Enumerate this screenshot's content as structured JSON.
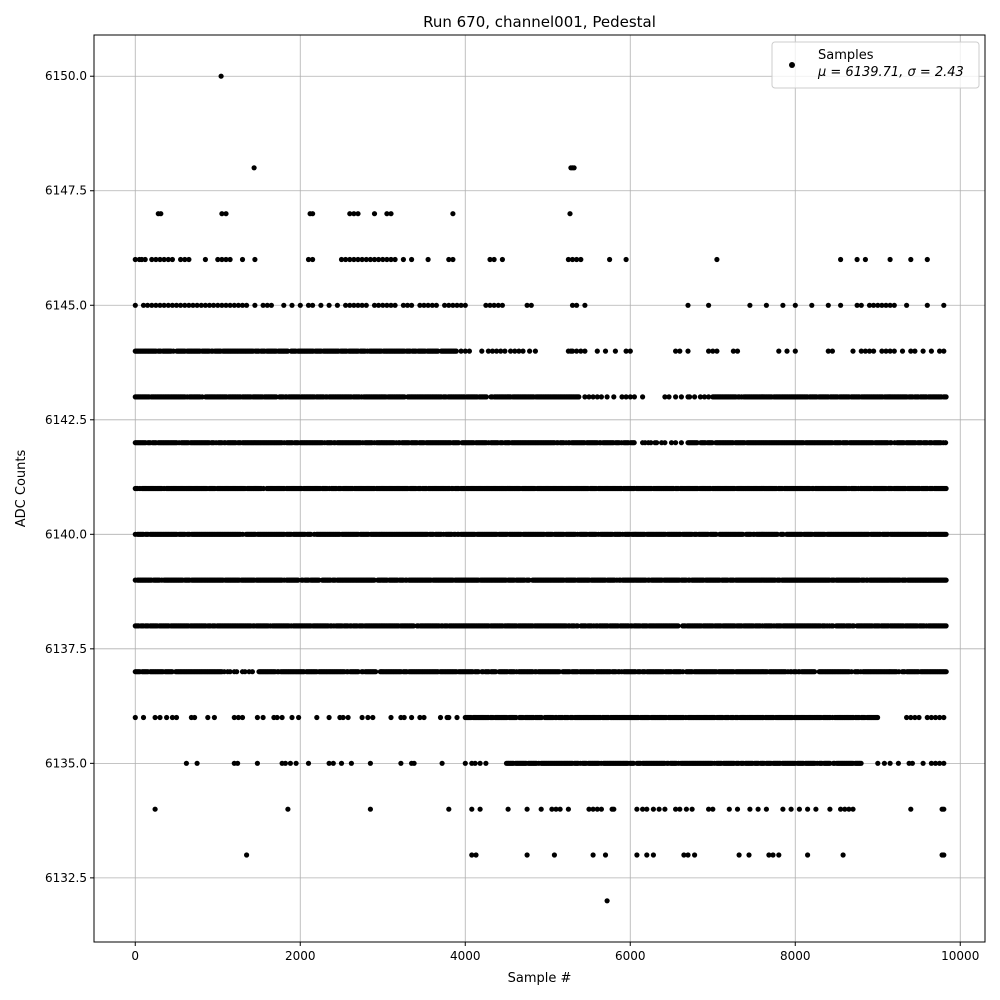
{
  "chart_data": {
    "type": "scatter",
    "title": "Run 670, channel001, Pedestal",
    "xlabel": "Sample #",
    "ylabel": "ADC Counts",
    "xlim": [
      -500,
      10300
    ],
    "ylim": [
      6131.1,
      6150.9
    ],
    "xticks": [
      0,
      2000,
      4000,
      6000,
      8000,
      10000
    ],
    "xtick_labels": [
      "0",
      "2000",
      "4000",
      "6000",
      "8000",
      "10000"
    ],
    "yticks": [
      6132.5,
      6135.0,
      6137.5,
      6140.0,
      6142.5,
      6145.0,
      6147.5,
      6150.0
    ],
    "ytick_labels": [
      "6132.5",
      "6135.0",
      "6137.5",
      "6140.0",
      "6142.5",
      "6145.0",
      "6147.5",
      "6150.0"
    ],
    "grid": true,
    "legend": {
      "position": "upper-right",
      "label": "Samples",
      "stats": "μ = 6139.71, σ = 2.43"
    },
    "marker_color": "#000000",
    "series": [
      {
        "name": "Samples",
        "sample_range": [
          0,
          9830
        ],
        "dense_levels": [
          {
            "y": 6137,
            "x_ranges": [
              [
                0,
                1050
              ],
              [
                1500,
                9830
              ]
            ]
          },
          {
            "y": 6138,
            "x_ranges": [
              [
                0,
                9830
              ]
            ]
          },
          {
            "y": 6139,
            "x_ranges": [
              [
                0,
                9830
              ]
            ]
          },
          {
            "y": 6140,
            "x_ranges": [
              [
                0,
                9830
              ]
            ]
          },
          {
            "y": 6141,
            "x_ranges": [
              [
                0,
                9830
              ]
            ]
          },
          {
            "y": 6142,
            "x_ranges": [
              [
                0,
                6050
              ],
              [
                6700,
                9830
              ]
            ]
          },
          {
            "y": 6143,
            "x_ranges": [
              [
                0,
                5400
              ],
              [
                7000,
                9830
              ]
            ]
          },
          {
            "y": 6144,
            "x_ranges": [
              [
                0,
                3900
              ]
            ]
          },
          {
            "y": 6136,
            "x_ranges": [
              [
                4000,
                9000
              ]
            ]
          },
          {
            "y": 6135,
            "x_ranges": [
              [
                4500,
                8800
              ]
            ]
          }
        ],
        "sparse_levels": [
          {
            "y": 6133,
            "x": [
              1350,
              4080,
              4130,
              4750,
              5080,
              5550,
              5700,
              6080,
              6200,
              6280,
              6650,
              6700,
              6780,
              7320,
              7440,
              7680,
              7730,
              7800,
              8150,
              8580,
              9780,
              9800
            ]
          },
          {
            "y": 6134,
            "x": [
              240,
              1850,
              2850,
              3800,
              4080,
              4180,
              4520,
              4750,
              4920,
              5050,
              5100,
              5150,
              5250,
              5500,
              5550,
              5600,
              5650,
              5780,
              5800,
              6080,
              6150,
              6200,
              6280,
              6350,
              6420,
              6550,
              6600,
              6680,
              6750,
              6950,
              7000,
              7200,
              7300,
              7450,
              7550,
              7650,
              7850,
              7950,
              8050,
              8150,
              8250,
              8420,
              8550,
              8600,
              8650,
              8700,
              9400,
              9780,
              9800
            ]
          },
          {
            "y": 6135,
            "x": [
              620,
              750,
              1200,
              1240,
              1480,
              1780,
              1820,
              1880,
              1950,
              2100,
              2350,
              2400,
              2500,
              2620,
              2850,
              3220,
              3350,
              3380,
              3720,
              4000,
              4080,
              4120,
              4180,
              4250,
              9000,
              9080,
              9150,
              9250,
              9380,
              9420,
              9550,
              9650,
              9700,
              9750,
              9800
            ]
          },
          {
            "y": 6136,
            "x": [
              0,
              100,
              240,
              300,
              380,
              450,
              500,
              680,
              720,
              880,
              960,
              1200,
              1250,
              1300,
              1480,
              1550,
              1680,
              1720,
              1780,
              1900,
              1980,
              2200,
              2350,
              2480,
              2520,
              2580,
              2750,
              2820,
              2880,
              3100,
              3220,
              3260,
              3350,
              3450,
              3500,
              3700,
              3780,
              3800,
              3900,
              9350,
              9400,
              9450,
              9500,
              9600,
              9650,
              9700,
              9750,
              9800
            ]
          },
          {
            "y": 6137,
            "x": [
              1080,
              1120,
              1150,
              1200,
              1230,
              1300,
              1330,
              1380,
              1420
            ]
          },
          {
            "y": 6142,
            "x": [
              6150,
              6180,
              6220,
              6250,
              6300,
              6320,
              6380,
              6420,
              6500,
              6550,
              6620
            ]
          },
          {
            "y": 6143,
            "x": [
              5450,
              5500,
              5550,
              5600,
              5650,
              5720,
              5800,
              5900,
              5950,
              6000,
              6050,
              6150,
              6420,
              6470,
              6550,
              6620,
              6700,
              6720,
              6780,
              6850,
              6900,
              6950
            ]
          },
          {
            "y": 6144,
            "x": [
              3950,
              4000,
              4050,
              4200,
              4280,
              4330,
              4380,
              4430,
              4480,
              4550,
              4600,
              4650,
              4700,
              4780,
              4850,
              5250,
              5280,
              5300,
              5350,
              5400,
              5450,
              5600,
              5700,
              5820,
              5950,
              6000,
              6550,
              6600,
              6700,
              6950,
              7000,
              7050,
              7250,
              7300,
              7800,
              7900,
              8000,
              8400,
              8450,
              8700,
              8800,
              8850,
              8900,
              8950,
              9050,
              9100,
              9150,
              9200,
              9300,
              9400,
              9450,
              9550,
              9650,
              9750,
              9800
            ]
          },
          {
            "y": 6145,
            "x": [
              0,
              100,
              150,
              200,
              250,
              300,
              350,
              400,
              450,
              500,
              550,
              600,
              650,
              700,
              750,
              800,
              850,
              900,
              950,
              1000,
              1050,
              1100,
              1150,
              1200,
              1250,
              1300,
              1350,
              1450,
              1550,
              1600,
              1650,
              1800,
              1900,
              2000,
              2100,
              2150,
              2250,
              2350,
              2450,
              2550,
              2600,
              2650,
              2700,
              2750,
              2800,
              2900,
              2950,
              3000,
              3050,
              3100,
              3150,
              3250,
              3300,
              3350,
              3450,
              3500,
              3550,
              3600,
              3650,
              3750,
              3800,
              3850,
              3900,
              3950,
              4000,
              4250,
              4300,
              4350,
              4400,
              4450,
              4750,
              4800,
              5300,
              5350,
              5450,
              6700,
              6950,
              7450,
              7650,
              7850,
              8000,
              8200,
              8400,
              8550,
              8750,
              8800,
              8900,
              8950,
              9000,
              9050,
              9100,
              9150,
              9200,
              9350,
              9600,
              9800
            ]
          },
          {
            "y": 6146,
            "x": [
              0,
              50,
              80,
              120,
              200,
              250,
              300,
              350,
              400,
              450,
              550,
              600,
              650,
              850,
              1000,
              1050,
              1100,
              1150,
              1300,
              1450,
              2100,
              2150,
              2500,
              2550,
              2600,
              2650,
              2700,
              2750,
              2800,
              2850,
              2900,
              2950,
              3000,
              3050,
              3100,
              3150,
              3250,
              3350,
              3550,
              3800,
              3850,
              4300,
              4350,
              4450,
              5250,
              5300,
              5350,
              5400,
              5750,
              5950,
              7050,
              8550,
              8750,
              8850,
              9150,
              9400,
              9600
            ]
          },
          {
            "y": 6147,
            "x": [
              280,
              310,
              1050,
              1100,
              2120,
              2150,
              2600,
              2650,
              2700,
              2900,
              3050,
              3100,
              3850,
              5270
            ]
          },
          {
            "y": 6148,
            "x": [
              1440,
              5280,
              5300,
              5320
            ]
          },
          {
            "y": 6150,
            "x": [
              1040
            ]
          },
          {
            "y": 6132,
            "x": [
              5720
            ]
          }
        ]
      }
    ]
  }
}
